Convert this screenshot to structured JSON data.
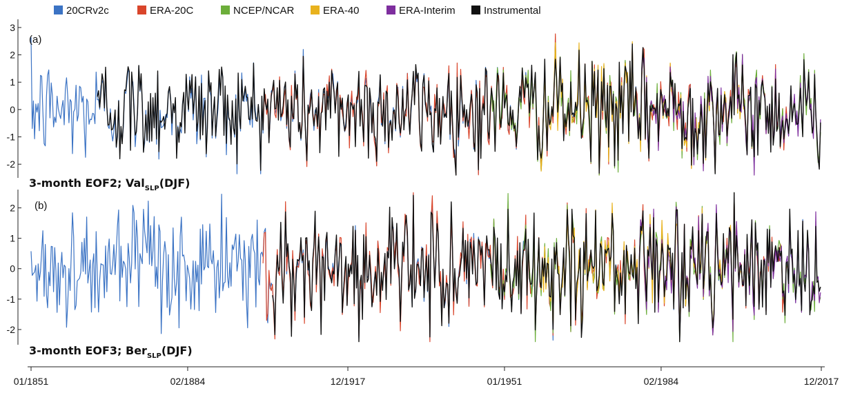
{
  "chart_data": {
    "type": "line",
    "legend_position": "top",
    "legend": [
      {
        "name": "20CRv2c",
        "color": "#3b73c4"
      },
      {
        "name": "ERA-20C",
        "color": "#d9452b"
      },
      {
        "name": "NCEP/NCAR",
        "color": "#6cae3a"
      },
      {
        "name": "ERA-40",
        "color": "#e8b21d"
      },
      {
        "name": "ERA-Interim",
        "color": "#7e2e9e"
      },
      {
        "name": "Instrumental",
        "color": "#111111"
      }
    ],
    "x_ticks": [
      "01/1851",
      "02/1884",
      "12/1917",
      "01/1951",
      "02/1984",
      "12/2017"
    ],
    "x_range": [
      "01/1851",
      "12/2017"
    ],
    "panels": [
      {
        "tag": "(a)",
        "title_main": "3-month EOF2; Val",
        "title_sub": "SLP",
        "title_end": "(DJF)",
        "ylim": [
          -2.5,
          3.3
        ],
        "yticks": [
          -2,
          -1,
          0,
          1,
          2,
          3
        ],
        "series_coverage": {
          "20CRv2c": [
            "01/1851",
            "12/2014"
          ],
          "ERA-20C": [
            "01/1900",
            "12/2010"
          ],
          "NCEP/NCAR": [
            "01/1948",
            "12/2017"
          ],
          "ERA-40": [
            "01/1958",
            "12/2001"
          ],
          "ERA-Interim": [
            "01/1979",
            "12/2017"
          ],
          "Instrumental": [
            "01/1865",
            "12/2017"
          ]
        }
      },
      {
        "tag": "(b)",
        "title_main": "3-month EOF3; Ber",
        "title_sub": "SLP",
        "title_end": "(DJF)",
        "ylim": [
          -2.5,
          2.6
        ],
        "yticks": [
          -2,
          -1,
          0,
          1,
          2
        ],
        "series_coverage": {
          "20CRv2c": [
            "01/1851",
            "12/2014"
          ],
          "ERA-20C": [
            "01/1900",
            "12/2010"
          ],
          "NCEP/NCAR": [
            "01/1948",
            "12/2017"
          ],
          "ERA-40": [
            "01/1958",
            "12/2001"
          ],
          "ERA-Interim": [
            "01/1979",
            "12/2017"
          ],
          "Instrumental": [
            "01/1902",
            "12/2017"
          ]
        }
      }
    ]
  }
}
